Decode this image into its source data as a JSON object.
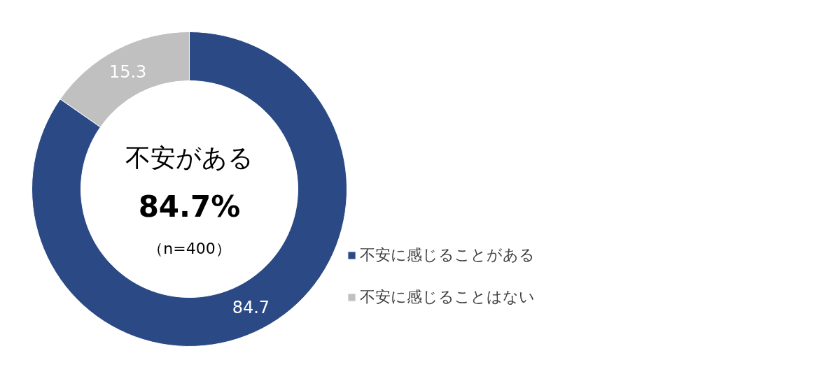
{
  "chart_data": {
    "type": "donut",
    "categories": [
      "不安に感じることがある",
      "不安に感じることはない"
    ],
    "values": [
      84.7,
      15.3
    ],
    "colors": [
      "#2b4a85",
      "#c0c0c0"
    ],
    "data_labels": true,
    "legend": "right",
    "annotations": [
      "不安がある",
      "84.7%",
      "（n=400）"
    ]
  }
}
